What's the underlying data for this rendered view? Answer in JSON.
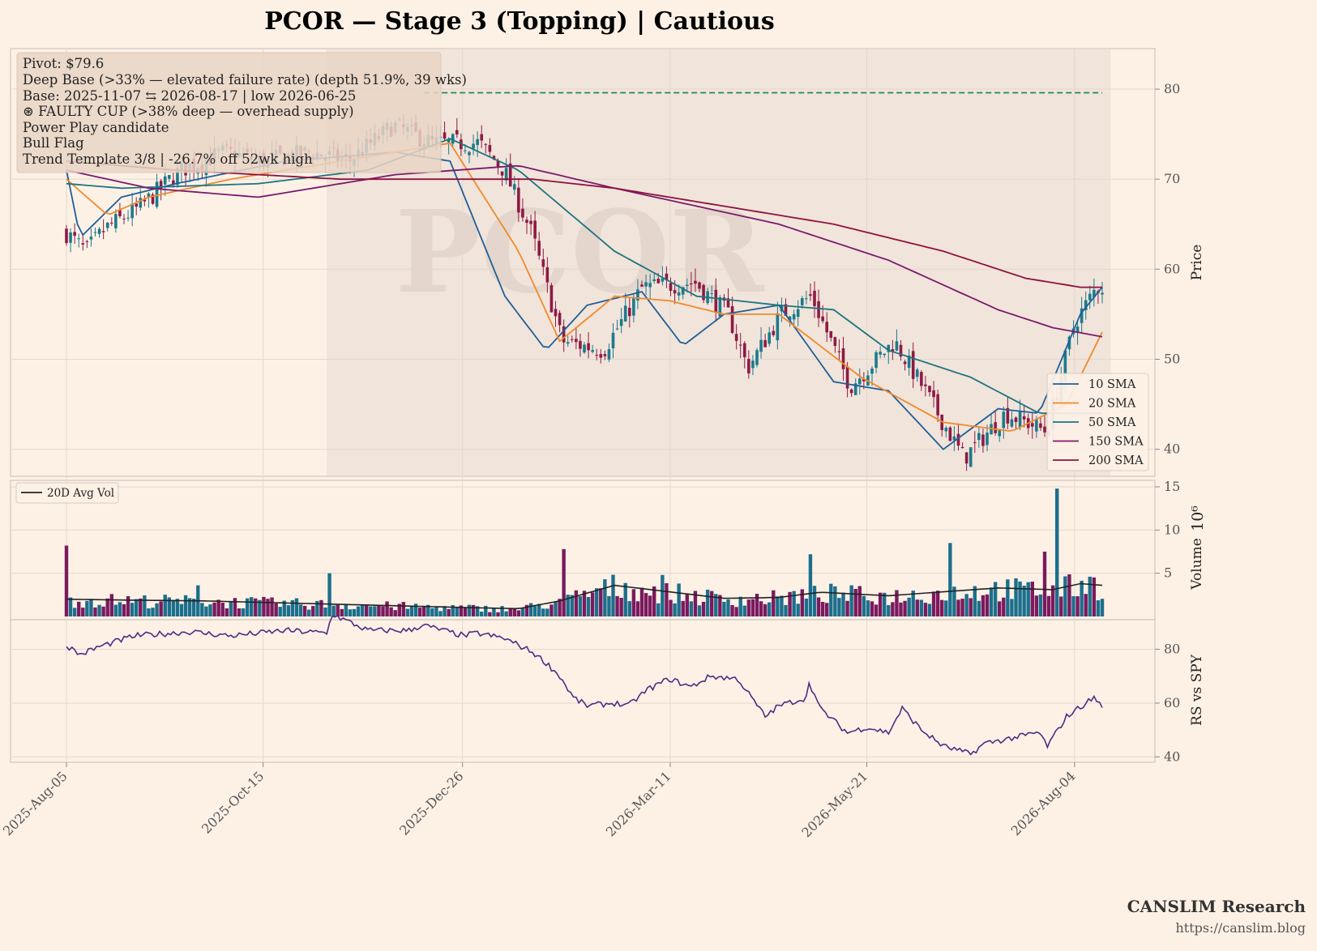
{
  "title": "PCOR  —  Stage 3 (Topping)  |  Cautious",
  "watermark": "PCOR",
  "annotations": [
    "Pivot: $79.6",
    "Deep Base (>33% — elevated failure rate)  (depth 51.9%, 39 wks)",
    "Base: 2025-11-07 ⇆ 2026-08-17  |  low 2026-06-25",
    "⊛ FAULTY CUP (>38% deep — overhead supply)",
    "Power Play candidate",
    "Bull Flag",
    "Trend Template 3/8  |  -26.7% off 52wk high"
  ],
  "credit": {
    "name": "CANSLIM Research",
    "url": "https://canslim.blog"
  },
  "chart_data": {
    "type": "candlestick",
    "x_tick_labels": [
      "2025-Aug-05",
      "2025-Oct-15",
      "2025-Dec-26",
      "2026-Mar-11",
      "2026-May-21",
      "2026-Aug-04"
    ],
    "price_panel": {
      "ylabel": "Price",
      "ylim": [
        37,
        84.5
      ],
      "y_ticks": [
        40,
        50,
        60,
        70,
        80
      ],
      "pivot": 79.6,
      "base_start": "2025-11-07",
      "base_end": "2026-08-17",
      "base_low_date": "2026-06-25",
      "close_keypoints": [
        {
          "date": "2025-Aug-05",
          "value": 64
        },
        {
          "date": "2025-Aug-12",
          "value": 62
        },
        {
          "date": "2025-Aug-19",
          "value": 64.5
        },
        {
          "date": "2025-Sep-01",
          "value": 67
        },
        {
          "date": "2025-Sep-15",
          "value": 71
        },
        {
          "date": "2025-Oct-01",
          "value": 73
        },
        {
          "date": "2025-Oct-15",
          "value": 72
        },
        {
          "date": "2025-Nov-01",
          "value": 73
        },
        {
          "date": "2025-Nov-15",
          "value": 72
        },
        {
          "date": "2025-Dec-01",
          "value": 76
        },
        {
          "date": "2025-Dec-15",
          "value": 74
        },
        {
          "date": "2026-Jan-01",
          "value": 74
        },
        {
          "date": "2026-Jan-10",
          "value": 71
        },
        {
          "date": "2026-Jan-20",
          "value": 64
        },
        {
          "date": "2026-Jan-31",
          "value": 52
        },
        {
          "date": "2026-Feb-15",
          "value": 51
        },
        {
          "date": "2026-Mar-01",
          "value": 58
        },
        {
          "date": "2026-Mar-20",
          "value": 58.5
        },
        {
          "date": "2026-Apr-01",
          "value": 55
        },
        {
          "date": "2026-Apr-08",
          "value": 49
        },
        {
          "date": "2026-Apr-20",
          "value": 55
        },
        {
          "date": "2026-May-01",
          "value": 57
        },
        {
          "date": "2026-May-15",
          "value": 47
        },
        {
          "date": "2026-May-31",
          "value": 52
        },
        {
          "date": "2026-Jun-10",
          "value": 47
        },
        {
          "date": "2026-Jun-25",
          "value": 39
        },
        {
          "date": "2026-Jul-10",
          "value": 44
        },
        {
          "date": "2026-Jul-25",
          "value": 42
        },
        {
          "date": "2026-Aug-04",
          "value": 54
        },
        {
          "date": "2026-Aug-12",
          "value": 58
        }
      ],
      "series": [
        {
          "name": "10 SMA",
          "color": "#1f5f9a",
          "values": [
            [
              0,
              71
            ],
            [
              5,
              63.5
            ],
            [
              20,
              68
            ],
            [
              40,
              69.5
            ],
            [
              80,
              72
            ],
            [
              120,
              73
            ],
            [
              140,
              72
            ],
            [
              160,
              57
            ],
            [
              175,
              51
            ],
            [
              190,
              56
            ],
            [
              210,
              57.5
            ],
            [
              225,
              51.5
            ],
            [
              240,
              55
            ],
            [
              260,
              56
            ],
            [
              280,
              47.5
            ],
            [
              300,
              46.5
            ],
            [
              320,
              40
            ],
            [
              340,
              44.5
            ],
            [
              355,
              44
            ],
            [
              370,
              55
            ],
            [
              378,
              58
            ]
          ]
        },
        {
          "name": "20 SMA",
          "color": "#f08a2c",
          "values": [
            [
              0,
              70
            ],
            [
              15,
              66
            ],
            [
              30,
              68
            ],
            [
              60,
              70
            ],
            [
              100,
              72
            ],
            [
              140,
              74
            ],
            [
              165,
              62
            ],
            [
              180,
              52
            ],
            [
              200,
              57
            ],
            [
              220,
              56.5
            ],
            [
              240,
              55
            ],
            [
              260,
              55
            ],
            [
              290,
              48
            ],
            [
              320,
              43
            ],
            [
              345,
              42
            ],
            [
              365,
              45
            ],
            [
              378,
              53
            ]
          ]
        },
        {
          "name": "50 SMA",
          "color": "#1c7580",
          "values": [
            [
              0,
              69.5
            ],
            [
              20,
              69
            ],
            [
              70,
              69.5
            ],
            [
              110,
              71
            ],
            [
              140,
              74.5
            ],
            [
              165,
              71
            ],
            [
              200,
              62
            ],
            [
              230,
              57
            ],
            [
              260,
              56
            ],
            [
              280,
              55.5
            ],
            [
              300,
              51
            ],
            [
              330,
              48
            ],
            [
              355,
              44
            ],
            [
              378,
              44
            ]
          ]
        },
        {
          "name": "150 SMA",
          "color": "#7a1a6e",
          "values": [
            [
              0,
              71
            ],
            [
              30,
              69
            ],
            [
              70,
              68
            ],
            [
              120,
              70.5
            ],
            [
              165,
              71.5
            ],
            [
              200,
              69
            ],
            [
              260,
              65
            ],
            [
              300,
              61
            ],
            [
              340,
              55.5
            ],
            [
              360,
              53.5
            ],
            [
              378,
              52.5
            ]
          ]
        },
        {
          "name": "200 SMA",
          "color": "#8e1240",
          "values": [
            [
              0,
              72
            ],
            [
              40,
              71
            ],
            [
              100,
              70
            ],
            [
              140,
              70
            ],
            [
              170,
              70
            ],
            [
              200,
              69
            ],
            [
              240,
              67
            ],
            [
              280,
              65
            ],
            [
              320,
              62
            ],
            [
              350,
              59
            ],
            [
              370,
              58
            ],
            [
              378,
              58
            ]
          ]
        }
      ]
    },
    "volume_panel": {
      "ylabel": "Volume",
      "scale_label": "10⁶",
      "ylim": [
        0,
        15
      ],
      "y_ticks": [
        5,
        10,
        15
      ],
      "legend": "20D Avg Vol",
      "spikes": [
        {
          "day": 0,
          "value": 8.2
        },
        {
          "day": 48,
          "value": 3.6
        },
        {
          "day": 96,
          "value": 5
        },
        {
          "day": 181,
          "value": 7.8
        },
        {
          "day": 217,
          "value": 4.8
        },
        {
          "day": 272,
          "value": 7.2
        },
        {
          "day": 323,
          "value": 8.5
        },
        {
          "day": 357,
          "value": 7.5
        },
        {
          "day": 362,
          "value": 14.8
        },
        {
          "day": 374,
          "value": 4.6
        }
      ],
      "avg_keypoints": [
        [
          0,
          2
        ],
        [
          20,
          1.9
        ],
        [
          50,
          1.8
        ],
        [
          100,
          1.4
        ],
        [
          150,
          1.0
        ],
        [
          165,
          0.9
        ],
        [
          180,
          1.8
        ],
        [
          200,
          3.6
        ],
        [
          240,
          2.1
        ],
        [
          260,
          2.2
        ],
        [
          275,
          2.8
        ],
        [
          300,
          2.4
        ],
        [
          340,
          3.3
        ],
        [
          360,
          3.1
        ],
        [
          370,
          3.8
        ],
        [
          378,
          3.6
        ]
      ]
    },
    "rs_panel": {
      "ylabel": "RS vs SPY",
      "ylim": [
        38,
        91
      ],
      "y_ticks": [
        40,
        60,
        80
      ],
      "keypoints": [
        [
          0,
          81.5
        ],
        [
          5,
          78
        ],
        [
          12,
          81
        ],
        [
          25,
          85
        ],
        [
          45,
          86.5
        ],
        [
          60,
          85
        ],
        [
          80,
          87
        ],
        [
          95,
          86
        ],
        [
          97,
          93
        ],
        [
          110,
          87
        ],
        [
          125,
          87
        ],
        [
          130,
          89
        ],
        [
          145,
          85
        ],
        [
          150,
          86
        ],
        [
          160,
          84
        ],
        [
          170,
          79
        ],
        [
          175,
          75
        ],
        [
          180,
          70
        ],
        [
          185,
          62
        ],
        [
          190,
          59
        ],
        [
          200,
          60
        ],
        [
          205,
          59
        ],
        [
          212,
          65
        ],
        [
          220,
          69
        ],
        [
          228,
          66
        ],
        [
          235,
          70
        ],
        [
          245,
          69
        ],
        [
          250,
          62
        ],
        [
          255,
          55
        ],
        [
          260,
          59
        ],
        [
          270,
          62
        ],
        [
          271,
          68
        ],
        [
          275,
          58
        ],
        [
          285,
          49
        ],
        [
          292,
          51
        ],
        [
          300,
          49
        ],
        [
          305,
          58
        ],
        [
          312,
          50
        ],
        [
          320,
          44
        ],
        [
          330,
          41
        ],
        [
          335,
          45
        ],
        [
          345,
          47
        ],
        [
          355,
          49
        ],
        [
          358,
          44
        ],
        [
          365,
          55
        ],
        [
          372,
          60
        ],
        [
          375,
          62
        ],
        [
          378,
          59
        ]
      ]
    }
  }
}
